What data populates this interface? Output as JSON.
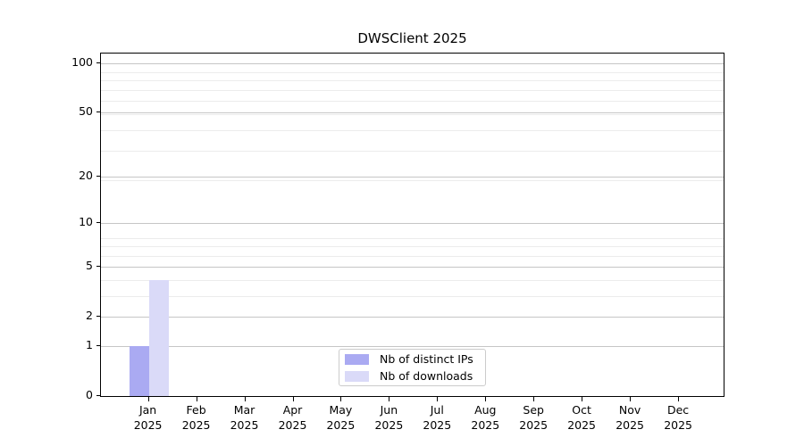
{
  "figure": {
    "background": "#ffffff"
  },
  "chart_data": {
    "type": "bar",
    "title": "DWSClient 2025",
    "categories": [
      "Jan 2025",
      "Feb 2025",
      "Mar 2025",
      "Apr 2025",
      "May 2025",
      "Jun 2025",
      "Jul 2025",
      "Aug 2025",
      "Sep 2025",
      "Oct 2025",
      "Nov 2025",
      "Dec 2025"
    ],
    "series": [
      {
        "name": "Nb of distinct IPs",
        "color": "#aaaaf2",
        "values": [
          1,
          0,
          0,
          0,
          0,
          0,
          0,
          0,
          0,
          0,
          0,
          0
        ]
      },
      {
        "name": "Nb of downloads",
        "color": "#dadaf8",
        "values": [
          4,
          0,
          0,
          0,
          0,
          0,
          0,
          0,
          0,
          0,
          0,
          0
        ]
      }
    ],
    "xlabel": "",
    "ylabel": "",
    "yscale": "log1p",
    "yticks": [
      0,
      1,
      2,
      5,
      10,
      20,
      50,
      100
    ],
    "ylim": [
      0,
      115
    ],
    "grid": true,
    "grid_color_major": "#c6c6c6",
    "grid_color_minor": "#ececec",
    "axis_color": "#000000",
    "legend": {
      "position": "lower center",
      "border_color": "#cccccc"
    }
  }
}
